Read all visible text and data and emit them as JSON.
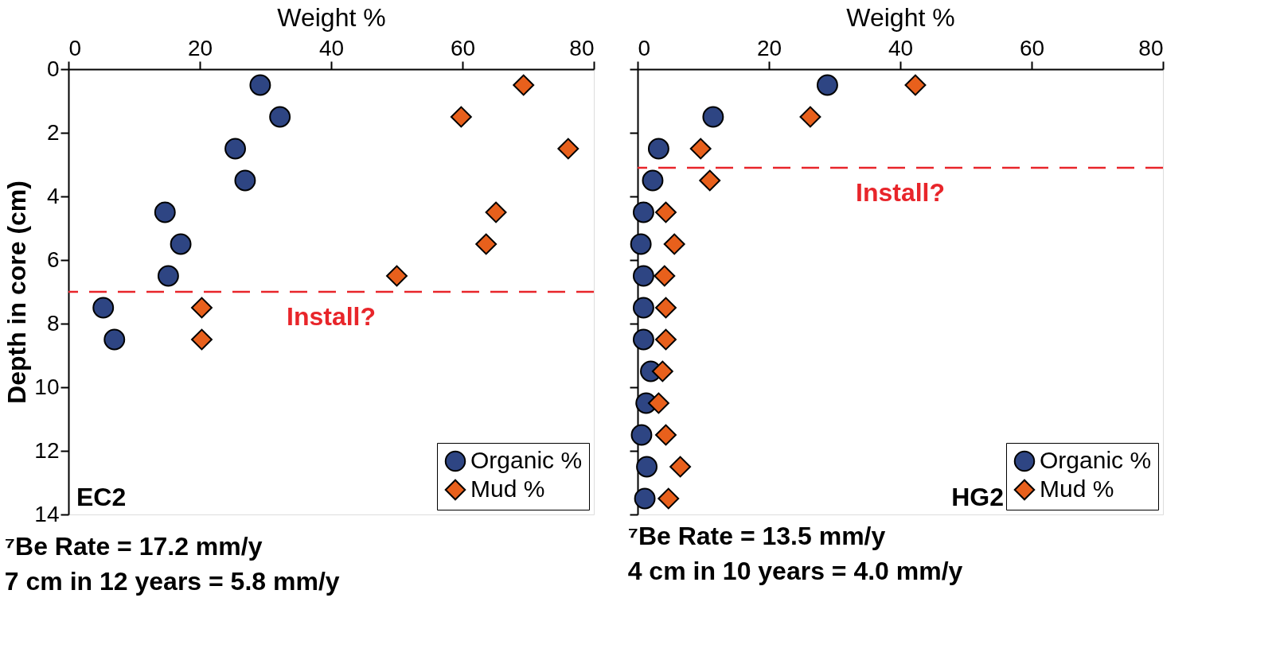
{
  "chart_data": [
    {
      "type": "scatter",
      "xlabel": "Weight %",
      "ylabel": "Depth in core (cm)",
      "xlim": [
        0,
        80
      ],
      "xticks": [
        0,
        20,
        40,
        60,
        80
      ],
      "ylim": [
        14,
        0
      ],
      "yticks": [
        0,
        2,
        4,
        6,
        8,
        10,
        12,
        14
      ],
      "grid": false,
      "legend": "bottom right",
      "series": [
        {
          "name": "Organic %",
          "color": "#2e4583",
          "marker": "circle",
          "x": [
            29.2,
            32.2,
            25.4,
            26.9,
            14.7,
            17.1,
            15.2,
            5.3,
            7.0
          ],
          "values": [
            0.5,
            1.5,
            2.5,
            3.5,
            4.5,
            5.5,
            6.5,
            7.5,
            8.5
          ]
        },
        {
          "name": "Mud %",
          "color": "#e8601c",
          "marker": "diamond",
          "x": [
            69.3,
            59.8,
            76.1,
            65.1,
            63.6,
            50.0,
            20.3,
            20.3
          ],
          "values": [
            0.5,
            1.5,
            2.5,
            4.5,
            5.5,
            6.5,
            7.5,
            8.5
          ]
        }
      ],
      "ref_lines": [
        {
          "axis": "y",
          "value": 7,
          "label": "Install?",
          "color": "#e8252a",
          "line_style": "dashed"
        }
      ],
      "annotations": [
        "EC2",
        "⁷Be Rate = 17.2 mm/y",
        "7 cm in 12 years = 5.8 mm/y"
      ]
    },
    {
      "type": "scatter",
      "xlabel": "Weight %",
      "xlim": [
        0,
        80
      ],
      "xticks": [
        0,
        20,
        40,
        60,
        80
      ],
      "ylim": [
        14,
        0
      ],
      "yticks": [
        0,
        2,
        4,
        6,
        8,
        10,
        12,
        14
      ],
      "grid": false,
      "legend": "bottom right",
      "tick_labels": "x",
      "series": [
        {
          "name": "Organic %",
          "color": "#2e4583",
          "marker": "circle",
          "x": [
            28.9,
            11.5,
            3.2,
            2.3,
            0.9,
            0.5,
            0.9,
            0.9,
            0.9,
            2.0,
            1.3,
            0.6,
            1.4,
            1.1
          ],
          "values": [
            0.5,
            1.5,
            2.5,
            3.5,
            4.5,
            5.5,
            6.5,
            7.5,
            8.5,
            9.5,
            10.5,
            11.5,
            12.5,
            13.5
          ]
        },
        {
          "name": "Mud %",
          "color": "#e8601c",
          "marker": "diamond",
          "x": [
            42.3,
            26.3,
            9.6,
            11.0,
            4.3,
            5.6,
            4.1,
            4.3,
            4.3,
            3.8,
            3.2,
            4.3,
            6.5,
            4.7
          ],
          "values": [
            0.5,
            1.5,
            2.5,
            3.5,
            4.5,
            5.5,
            6.5,
            7.5,
            8.5,
            9.5,
            10.5,
            11.5,
            12.5,
            13.5
          ]
        }
      ],
      "ref_lines": [
        {
          "axis": "y",
          "value": 3.1,
          "label": "Install?",
          "color": "#e8252a",
          "line_style": "dashed"
        }
      ],
      "annotations": [
        "HG2",
        "⁷Be Rate = 13.5 mm/y",
        "4 cm in 10 years = 4.0 mm/y"
      ]
    }
  ]
}
